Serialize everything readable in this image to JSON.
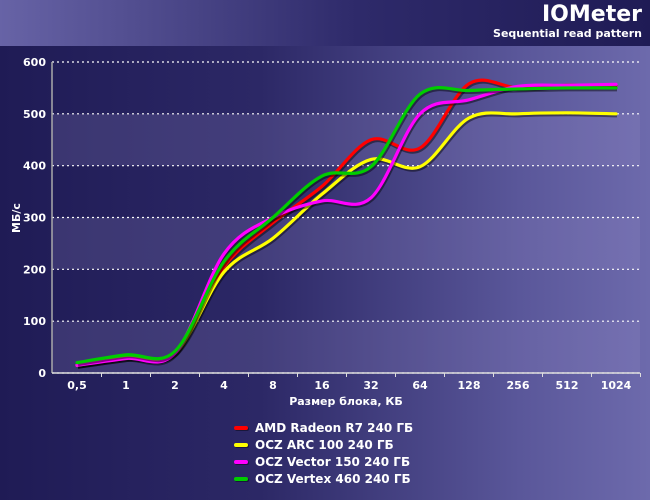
{
  "chart_data": {
    "type": "line",
    "title": "IOMeter",
    "subtitle": "Sequential read pattern",
    "xlabel": "Размер блока, КБ",
    "ylabel": "МБ/с",
    "ylim": [
      0,
      600
    ],
    "yticks": [
      "0",
      "100",
      "200",
      "300",
      "400",
      "500",
      "600"
    ],
    "categories": [
      "0,5",
      "1",
      "2",
      "4",
      "8",
      "16",
      "32",
      "64",
      "128",
      "256",
      "512",
      "1024"
    ],
    "grid": true,
    "legend_position": "bottom",
    "series": [
      {
        "name": "AMD Radeon R7 240 ГБ",
        "color": "#ff0000",
        "values": [
          15,
          28,
          40,
          205,
          290,
          360,
          450,
          434,
          558,
          550,
          555,
          555
        ]
      },
      {
        "name": "OCZ ARC 100 240 ГБ",
        "color": "#ffff00",
        "values": [
          15,
          30,
          38,
          195,
          260,
          345,
          412,
          398,
          492,
          500,
          502,
          500
        ]
      },
      {
        "name": "OCZ Vector 150 240 ГБ",
        "color": "#ff00ff",
        "values": [
          15,
          28,
          38,
          230,
          300,
          332,
          338,
          500,
          527,
          553,
          555,
          557
        ]
      },
      {
        "name": "OCZ Vertex 460 240 ГБ",
        "color": "#00cc00",
        "values": [
          20,
          35,
          42,
          215,
          300,
          380,
          398,
          538,
          545,
          548,
          550,
          550
        ]
      }
    ]
  }
}
